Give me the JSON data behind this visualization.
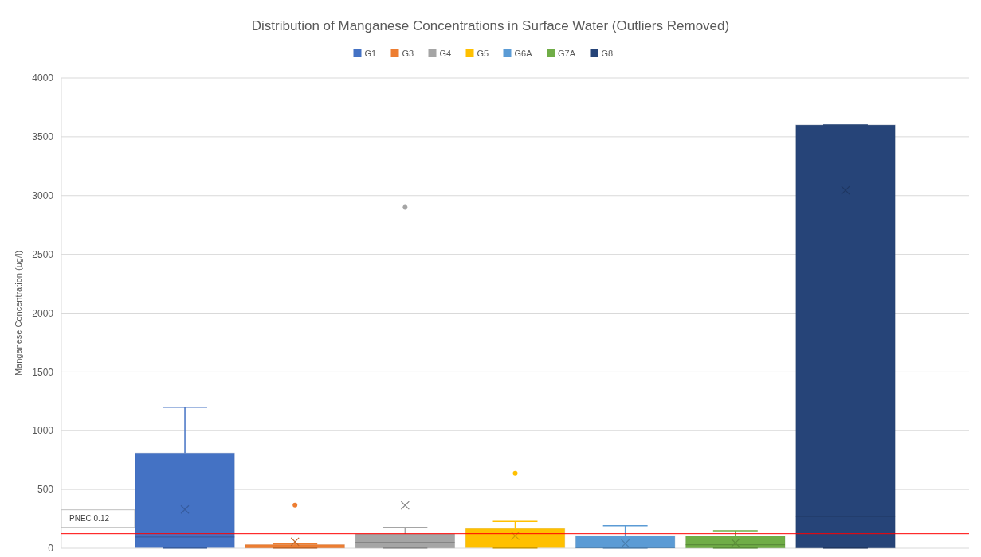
{
  "chart_data": {
    "type": "box",
    "title": "Distribution of Manganese Concentrations in Surface Water (Outliers Removed)",
    "ylabel": "Manganese Concentration (ug/l)",
    "categories": [
      null
    ],
    "series": [
      {
        "name": "G1",
        "color": "#4472c4",
        "boxes": [
          {
            "low": 1,
            "q1": 5,
            "median": 95,
            "q3": 810,
            "high": 1200,
            "mean": 330
          }
        ]
      },
      {
        "name": "G3",
        "color": "#ed7d31",
        "boxes": [
          {
            "low": 1,
            "q1": 2,
            "median": 10,
            "q3": 30,
            "high": 35,
            "mean": 55,
            "outliers": [
              367
            ]
          }
        ]
      },
      {
        "name": "G4",
        "color": "#a5a5a5",
        "boxes": [
          {
            "low": 1,
            "q1": 2,
            "median": 50,
            "q3": 122,
            "high": 178,
            "mean": 365,
            "outliers": [
              2900
            ]
          }
        ]
      },
      {
        "name": "G5",
        "color": "#ffc000",
        "boxes": [
          {
            "low": 1,
            "q1": 5,
            "median": 10,
            "q3": 167,
            "high": 228,
            "mean": 106,
            "outliers": [
              638
            ]
          }
        ]
      },
      {
        "name": "G6A",
        "color": "#5b9bd5",
        "boxes": [
          {
            "low": 1,
            "q1": 2,
            "median": 5,
            "q3": 106,
            "high": 192,
            "mean": 40
          }
        ]
      },
      {
        "name": "G7A",
        "color": "#70ad47",
        "boxes": [
          {
            "low": 1,
            "q1": 2,
            "median": 29,
            "q3": 104,
            "high": 149,
            "mean": 45
          }
        ]
      },
      {
        "name": "G8",
        "color": "#264478",
        "boxes": [
          {
            "low": 1,
            "q1": 2,
            "median": 271,
            "q3": 3600,
            "high": 3600,
            "mean": 3045
          }
        ]
      }
    ],
    "ylim": [
      0,
      4000
    ],
    "yticks": [
      0,
      500,
      1000,
      1500,
      2000,
      2500,
      3000,
      3500,
      4000
    ],
    "grid": "y",
    "legend": "top",
    "ref_lines": [
      {
        "axis": "y",
        "value": 124,
        "label": "PNEC 0.12",
        "color": "#ff0000"
      }
    ]
  }
}
